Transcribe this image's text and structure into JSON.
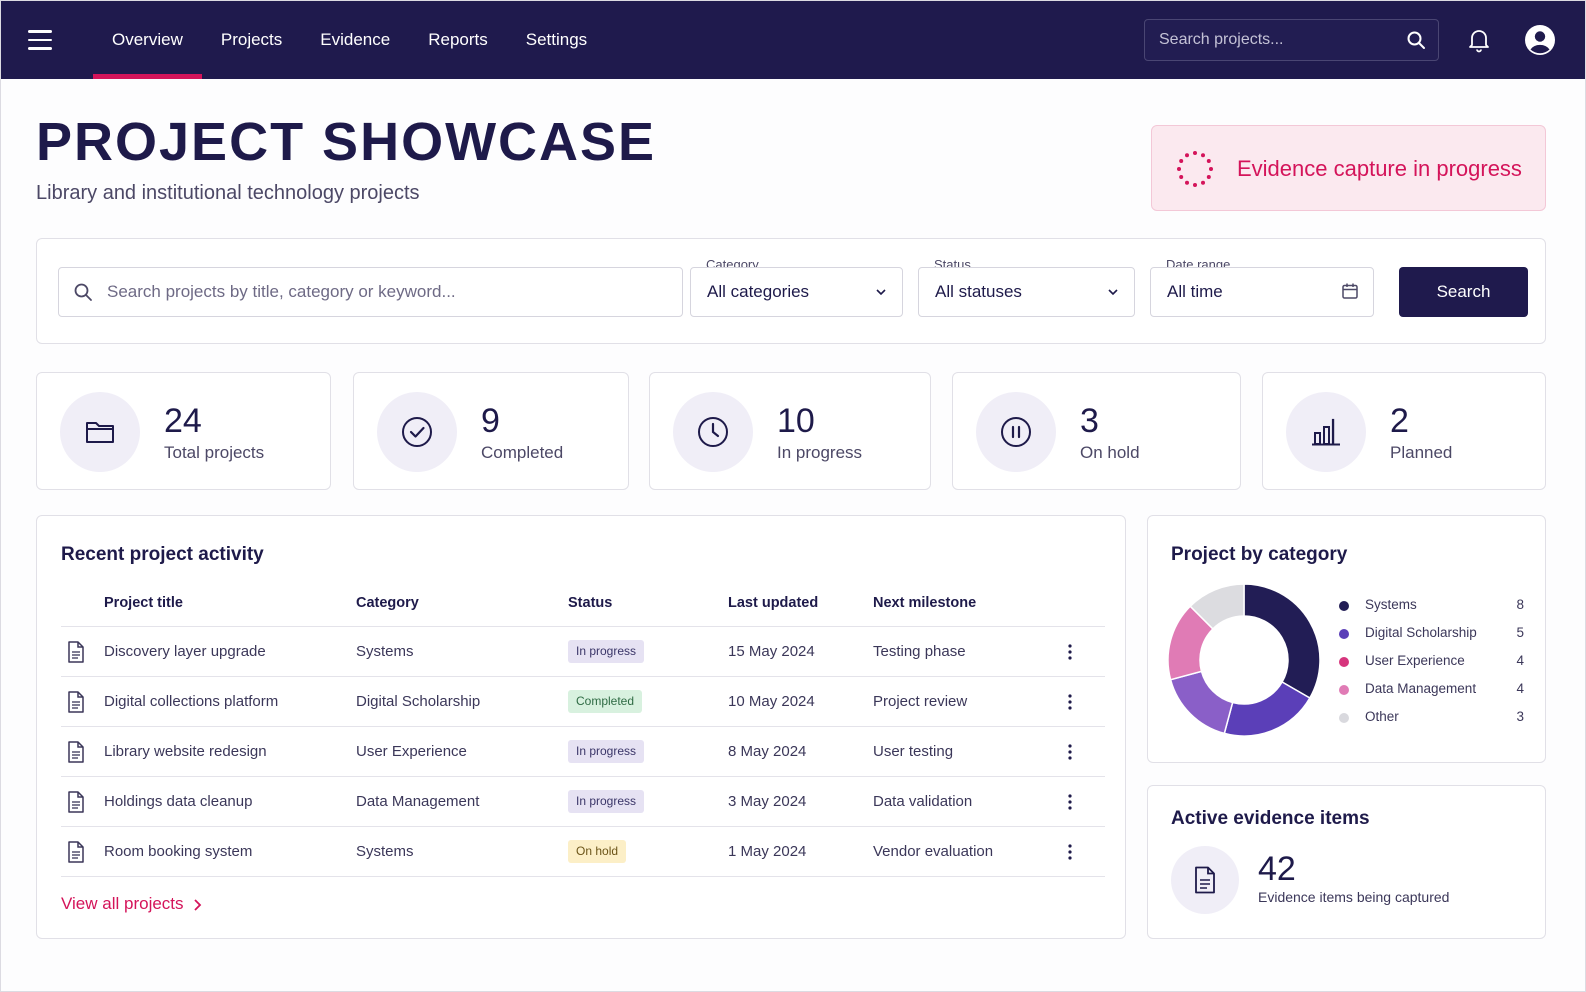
{
  "nav": {
    "links": [
      "Overview",
      "Projects",
      "Evidence",
      "Reports",
      "Settings"
    ],
    "active": "Overview",
    "search_placeholder": "Search projects..."
  },
  "header": {
    "title": "PROJECT SHOWCASE",
    "subtitle": "Library and institutional technology projects",
    "capture_status": "Evidence capture in progress"
  },
  "filters": {
    "search_placeholder": "Search projects by title, category or keyword...",
    "category_label": "Category",
    "category_value": "All categories",
    "status_label": "Status",
    "status_value": "All statuses",
    "date_label": "Date range",
    "date_value": "All time",
    "search_button": "Search"
  },
  "stats": [
    {
      "value": "24",
      "label": "Total projects",
      "icon": "folder-icon"
    },
    {
      "value": "9",
      "label": "Completed",
      "icon": "check-circle-icon"
    },
    {
      "value": "10",
      "label": "In progress",
      "icon": "clock-icon"
    },
    {
      "value": "3",
      "label": "On hold",
      "icon": "pause-icon"
    },
    {
      "value": "2",
      "label": "Planned",
      "icon": "bar-chart-icon"
    }
  ],
  "activity": {
    "title": "Recent project activity",
    "columns": [
      "Project title",
      "Category",
      "Status",
      "Last updated",
      "Next milestone"
    ],
    "rows": [
      {
        "title": "Discovery layer upgrade",
        "category": "Systems",
        "status": "In progress",
        "updated": "15 May 2024",
        "milestone": "Testing phase"
      },
      {
        "title": "Digital collections platform",
        "category": "Digital Scholarship",
        "status": "Completed",
        "updated": "10 May 2024",
        "milestone": "Project review"
      },
      {
        "title": "Library website redesign",
        "category": "User Experience",
        "status": "In progress",
        "updated": "8 May 2024",
        "milestone": "User testing"
      },
      {
        "title": "Holdings data cleanup",
        "category": "Data Management",
        "status": "In progress",
        "updated": "3 May 2024",
        "milestone": "Data validation"
      },
      {
        "title": "Room booking system",
        "category": "Systems",
        "status": "On hold",
        "updated": "1 May 2024",
        "milestone": "Vendor evaluation"
      }
    ],
    "view_all": "View all projects"
  },
  "category_chart": {
    "title": "Project by category"
  },
  "chart_data": {
    "type": "pie",
    "variant": "donut",
    "categories": [
      "Systems",
      "Digital Scholarship",
      "User Experience",
      "Data Management",
      "Other"
    ],
    "values": [
      8,
      5,
      4,
      4,
      3
    ],
    "colors": [
      "#221d55",
      "#5b3fb8",
      "#8a5fc8",
      "#e07bb5",
      "#dcdce0"
    ],
    "legend_colors": [
      "#221d55",
      "#5b3fb8",
      "#d6357d",
      "#e07bb5",
      "#d9d9de"
    ]
  },
  "evidence": {
    "title": "Active evidence items",
    "value": "42",
    "label": "Evidence items being captured"
  },
  "colors": {
    "nav_bg": "#1f1a4d",
    "accent": "#d4145a",
    "text": "#1e1a4a"
  }
}
